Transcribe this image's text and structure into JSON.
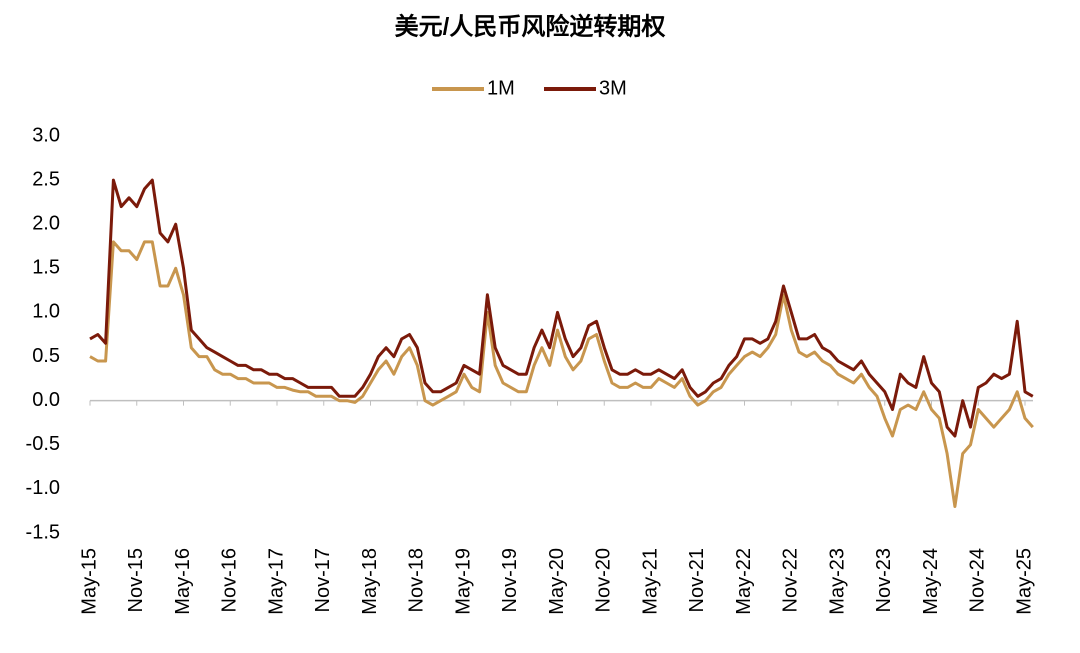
{
  "chart_data": {
    "type": "line",
    "title": "美元/人民币风险逆转期权",
    "categories": [
      "May-15",
      null,
      null,
      null,
      null,
      null,
      "Nov-15",
      null,
      null,
      null,
      null,
      null,
      "May-16",
      null,
      null,
      null,
      null,
      null,
      "Nov-16",
      null,
      null,
      null,
      null,
      null,
      "May-17",
      null,
      null,
      null,
      null,
      null,
      "Nov-17",
      null,
      null,
      null,
      null,
      null,
      "May-18",
      null,
      null,
      null,
      null,
      null,
      "Nov-18",
      null,
      null,
      null,
      null,
      null,
      "May-19",
      null,
      null,
      null,
      null,
      null,
      "Nov-19",
      null,
      null,
      null,
      null,
      null,
      "May-20",
      null,
      null,
      null,
      null,
      null,
      "Nov-20",
      null,
      null,
      null,
      null,
      null,
      "May-21",
      null,
      null,
      null,
      null,
      null,
      "Nov-21",
      null,
      null,
      null,
      null,
      null,
      "May-22",
      null,
      null,
      null,
      null,
      null,
      "Nov-22",
      null,
      null,
      null,
      null,
      null,
      "May-23",
      null,
      null,
      null,
      null,
      null,
      "Nov-23",
      null,
      null,
      null,
      null,
      null,
      "May-24",
      null,
      null,
      null,
      null,
      null,
      "Nov-24",
      null,
      null,
      null,
      null,
      null,
      "May-25",
      null
    ],
    "series": [
      {
        "name": "1M",
        "color": "#c8964e",
        "values": [
          0.5,
          0.45,
          0.45,
          1.8,
          1.7,
          1.7,
          1.6,
          1.8,
          1.8,
          1.3,
          1.3,
          1.5,
          1.2,
          0.6,
          0.5,
          0.5,
          0.35,
          0.3,
          0.3,
          0.25,
          0.25,
          0.2,
          0.2,
          0.2,
          0.15,
          0.15,
          0.12,
          0.1,
          0.1,
          0.05,
          0.05,
          0.05,
          0.0,
          0.0,
          -0.02,
          0.05,
          0.2,
          0.35,
          0.45,
          0.3,
          0.5,
          0.6,
          0.4,
          0.0,
          -0.05,
          0.0,
          0.05,
          0.1,
          0.3,
          0.15,
          0.1,
          1.0,
          0.4,
          0.2,
          0.15,
          0.1,
          0.1,
          0.4,
          0.6,
          0.4,
          0.8,
          0.5,
          0.35,
          0.45,
          0.7,
          0.75,
          0.45,
          0.2,
          0.15,
          0.15,
          0.2,
          0.15,
          0.15,
          0.25,
          0.2,
          0.15,
          0.25,
          0.05,
          -0.05,
          0.0,
          0.1,
          0.15,
          0.3,
          0.4,
          0.5,
          0.55,
          0.5,
          0.6,
          0.75,
          1.2,
          0.8,
          0.55,
          0.5,
          0.55,
          0.45,
          0.4,
          0.3,
          0.25,
          0.2,
          0.3,
          0.15,
          0.05,
          -0.2,
          -0.4,
          -0.1,
          -0.05,
          -0.1,
          0.1,
          -0.1,
          -0.2,
          -0.6,
          -1.2,
          -0.6,
          -0.5,
          -0.1,
          -0.2,
          -0.3,
          -0.2,
          -0.1,
          0.1,
          -0.2,
          -0.3
        ]
      },
      {
        "name": "3M",
        "color": "#7b1a0a",
        "values": [
          0.7,
          0.75,
          0.65,
          2.5,
          2.2,
          2.3,
          2.2,
          2.4,
          2.5,
          1.9,
          1.8,
          2.0,
          1.5,
          0.8,
          0.7,
          0.6,
          0.55,
          0.5,
          0.45,
          0.4,
          0.4,
          0.35,
          0.35,
          0.3,
          0.3,
          0.25,
          0.25,
          0.2,
          0.15,
          0.15,
          0.15,
          0.15,
          0.05,
          0.05,
          0.05,
          0.15,
          0.3,
          0.5,
          0.6,
          0.5,
          0.7,
          0.75,
          0.6,
          0.2,
          0.1,
          0.1,
          0.15,
          0.2,
          0.4,
          0.35,
          0.3,
          1.2,
          0.6,
          0.4,
          0.35,
          0.3,
          0.3,
          0.6,
          0.8,
          0.6,
          1.0,
          0.7,
          0.5,
          0.6,
          0.85,
          0.9,
          0.6,
          0.35,
          0.3,
          0.3,
          0.35,
          0.3,
          0.3,
          0.35,
          0.3,
          0.25,
          0.35,
          0.15,
          0.05,
          0.1,
          0.2,
          0.25,
          0.4,
          0.5,
          0.7,
          0.7,
          0.65,
          0.7,
          0.9,
          1.3,
          1.0,
          0.7,
          0.7,
          0.75,
          0.6,
          0.55,
          0.45,
          0.4,
          0.35,
          0.45,
          0.3,
          0.2,
          0.1,
          -0.1,
          0.3,
          0.2,
          0.15,
          0.5,
          0.2,
          0.1,
          -0.3,
          -0.4,
          0.0,
          -0.3,
          0.15,
          0.2,
          0.3,
          0.25,
          0.3,
          0.9,
          0.1,
          0.05
        ]
      }
    ],
    "ylim": [
      -1.5,
      3.0
    ],
    "yticks": [
      {
        "value": -1.5,
        "label": "-1.5"
      },
      {
        "value": -1,
        "label": "-1.0"
      },
      {
        "value": -0.5,
        "label": "-0.5"
      },
      {
        "value": 0,
        "label": "0.0"
      },
      {
        "value": 0.5,
        "label": "0.5"
      },
      {
        "value": 1,
        "label": "1.0"
      },
      {
        "value": 1.5,
        "label": "1.5"
      },
      {
        "value": 2,
        "label": "2.0"
      },
      {
        "value": 2.5,
        "label": "2.5"
      },
      {
        "value": 3,
        "label": "3.0"
      }
    ],
    "legend": "top"
  }
}
